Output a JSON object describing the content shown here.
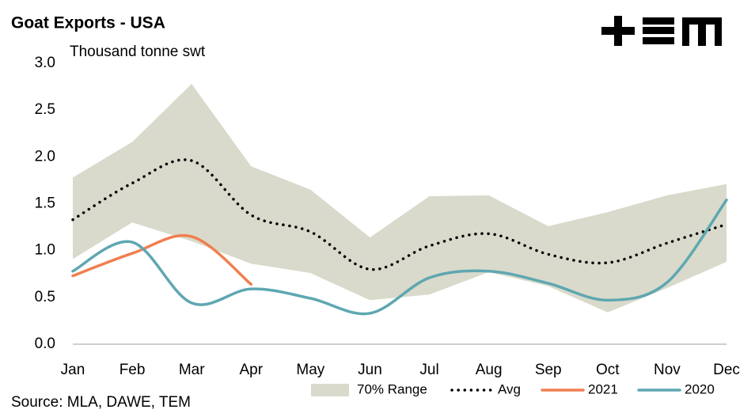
{
  "chart_data": {
    "type": "line",
    "title": "Goat Exports - USA",
    "y_label": "Thousand tonne swt",
    "source": "Source: MLA, DAWE, TEM",
    "categories": [
      "Jan",
      "Feb",
      "Mar",
      "Apr",
      "May",
      "Jun",
      "Jul",
      "Aug",
      "Sep",
      "Oct",
      "Nov",
      "Dec"
    ],
    "ylim": [
      0,
      3
    ],
    "yticks": [
      {
        "value": 0,
        "label": "0.0"
      },
      0.5,
      {
        "value": 1,
        "label": "1.0"
      },
      1.5,
      {
        "value": 2,
        "label": "2.0"
      },
      2.5,
      {
        "value": 3,
        "label": "3.0"
      }
    ],
    "grid": false,
    "legend": "bottom",
    "series": [
      {
        "name": "70% Range",
        "color": "#d9dacb",
        "kind": "range",
        "upper": [
          1.78,
          2.16,
          2.78,
          1.9,
          1.65,
          1.14,
          1.58,
          1.59,
          1.26,
          1.41,
          1.59,
          1.71
        ],
        "lower": [
          0.91,
          1.3,
          1.1,
          0.86,
          0.76,
          0.47,
          0.53,
          0.77,
          0.62,
          0.34,
          0.6,
          0.88
        ]
      },
      {
        "name": "Avg",
        "color": "#000000",
        "kind": "dotted",
        "values": [
          1.33,
          1.72,
          1.96,
          1.38,
          1.2,
          0.8,
          1.05,
          1.18,
          0.96,
          0.87,
          1.08,
          1.28
        ]
      },
      {
        "name": "2021",
        "color": "#f07f50",
        "kind": "solid",
        "values": [
          0.73,
          0.97,
          1.15,
          0.64,
          null,
          null,
          null,
          null,
          null,
          null,
          null,
          null
        ]
      },
      {
        "name": "2020",
        "color": "#5ea7b1",
        "kind": "solid",
        "values": [
          0.78,
          1.09,
          0.44,
          0.59,
          0.49,
          0.33,
          0.71,
          0.78,
          0.65,
          0.47,
          0.66,
          1.54
        ]
      }
    ]
  }
}
